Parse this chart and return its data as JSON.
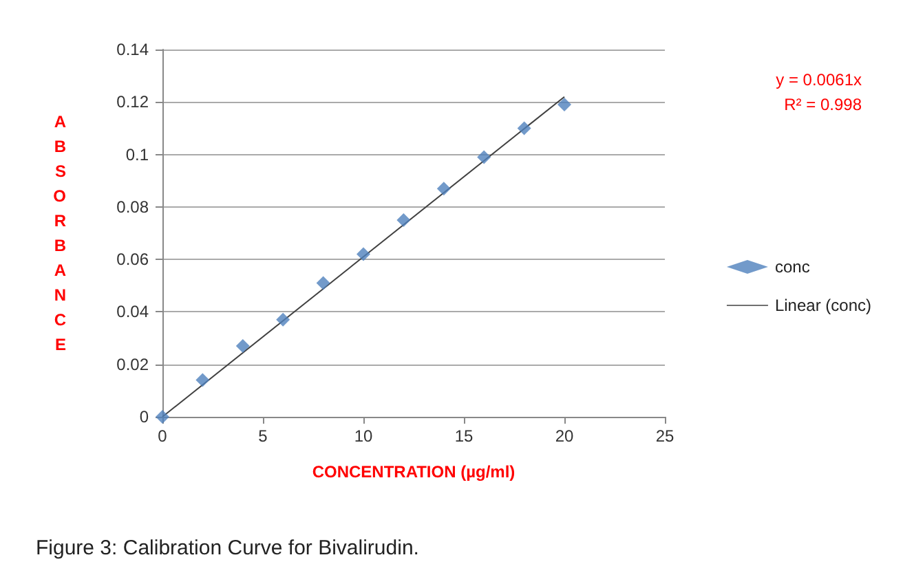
{
  "chart_data": {
    "type": "scatter",
    "xlabel": "CONCENTRATION (µg/ml)",
    "ylabel": "ABSORBANCE",
    "x": [
      0,
      2,
      4,
      6,
      8,
      10,
      12,
      14,
      16,
      18,
      20
    ],
    "series": [
      {
        "name": "conc",
        "color": "#4f81bd",
        "marker": "diamond",
        "values": [
          0,
          0.014,
          0.027,
          0.037,
          0.051,
          0.062,
          0.075,
          0.087,
          0.099,
          0.11,
          0.119
        ]
      },
      {
        "name": "Linear (conc)",
        "type": "line",
        "color": "#404040",
        "marker": "none",
        "x": [
          0,
          20
        ],
        "values": [
          0,
          0.122
        ]
      }
    ],
    "xlim": [
      0,
      25
    ],
    "xticks": [
      0,
      5,
      10,
      15,
      20,
      25
    ],
    "ylim": [
      0,
      0.14
    ],
    "yticks": [
      0,
      0.02,
      0.04,
      0.06,
      0.08,
      0.1,
      0.12,
      0.14
    ],
    "grid": "y",
    "legend": "right",
    "annotations": [
      "y = 0.0061x",
      "R² = 0.998",
      "Figure 3: Calibration Curve for Bivalirudin."
    ]
  }
}
